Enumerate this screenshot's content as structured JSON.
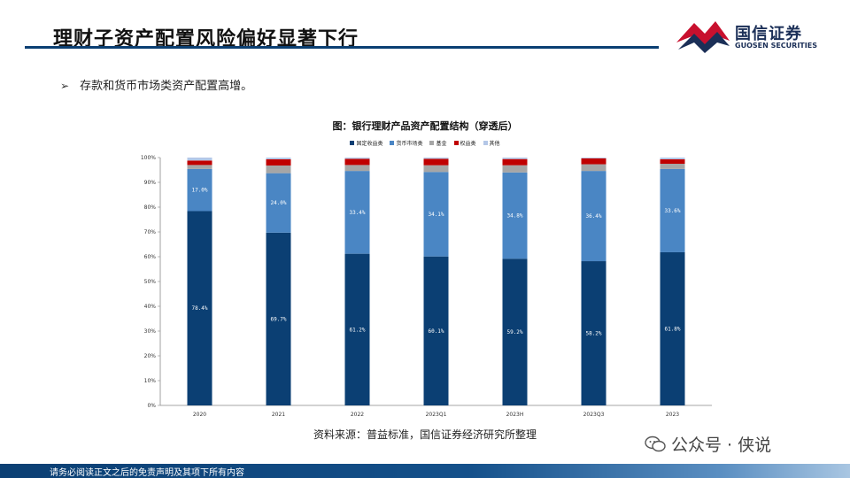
{
  "header": {
    "title": "理财子资产配置风险偏好显著下行",
    "logo_cn": "国信证券",
    "logo_en": "GUOSEN SECURITIES"
  },
  "bullet": {
    "symbol": "➢",
    "text": "存款和货币市场类资产配置高增。"
  },
  "chart_data": {
    "type": "bar",
    "stacked": true,
    "title": "图：银行理财产品资产配置结构（穿透后）",
    "categories": [
      "2020",
      "2021",
      "2022",
      "2023Q1",
      "2023H",
      "2023Q3",
      "2023"
    ],
    "ylim": [
      0,
      100
    ],
    "y_ticks": [
      "0%",
      "10%",
      "20%",
      "30%",
      "40%",
      "50%",
      "60%",
      "70%",
      "80%",
      "90%",
      "100%"
    ],
    "series": [
      {
        "name": "固定收益类",
        "color": "#0b3f73",
        "values": [
          78.4,
          69.7,
          61.2,
          60.1,
          59.2,
          58.2,
          61.8
        ],
        "labels": [
          "78.4%",
          "69.7%",
          "61.2%",
          "60.1%",
          "59.2%",
          "58.2%",
          "61.8%"
        ]
      },
      {
        "name": "货币市场类",
        "color": "#4a86c4",
        "values": [
          17.0,
          24.0,
          33.4,
          34.1,
          34.8,
          36.4,
          33.6
        ],
        "labels": [
          "17.0%",
          "24.0%",
          "33.4%",
          "34.1%",
          "34.8%",
          "36.4%",
          "33.6%"
        ]
      },
      {
        "name": "基金",
        "color": "#a6a6a6",
        "values": [
          1.6,
          3.1,
          2.4,
          2.7,
          2.9,
          2.7,
          2.1
        ]
      },
      {
        "name": "权益类",
        "color": "#c00000",
        "values": [
          1.8,
          2.5,
          2.5,
          2.6,
          2.5,
          2.4,
          1.8
        ]
      },
      {
        "name": "其他",
        "color": "#b4c7e7",
        "values": [
          1.2,
          0.7,
          0.5,
          0.5,
          0.6,
          0.3,
          0.7
        ]
      }
    ]
  },
  "source": "资料来源：普益标准，国信证券经济研究所整理",
  "watermark": {
    "text": "公众号 · 侠说"
  },
  "footer": {
    "text": "请务必阅读正文之后的免责声明及其项下所有内容"
  }
}
